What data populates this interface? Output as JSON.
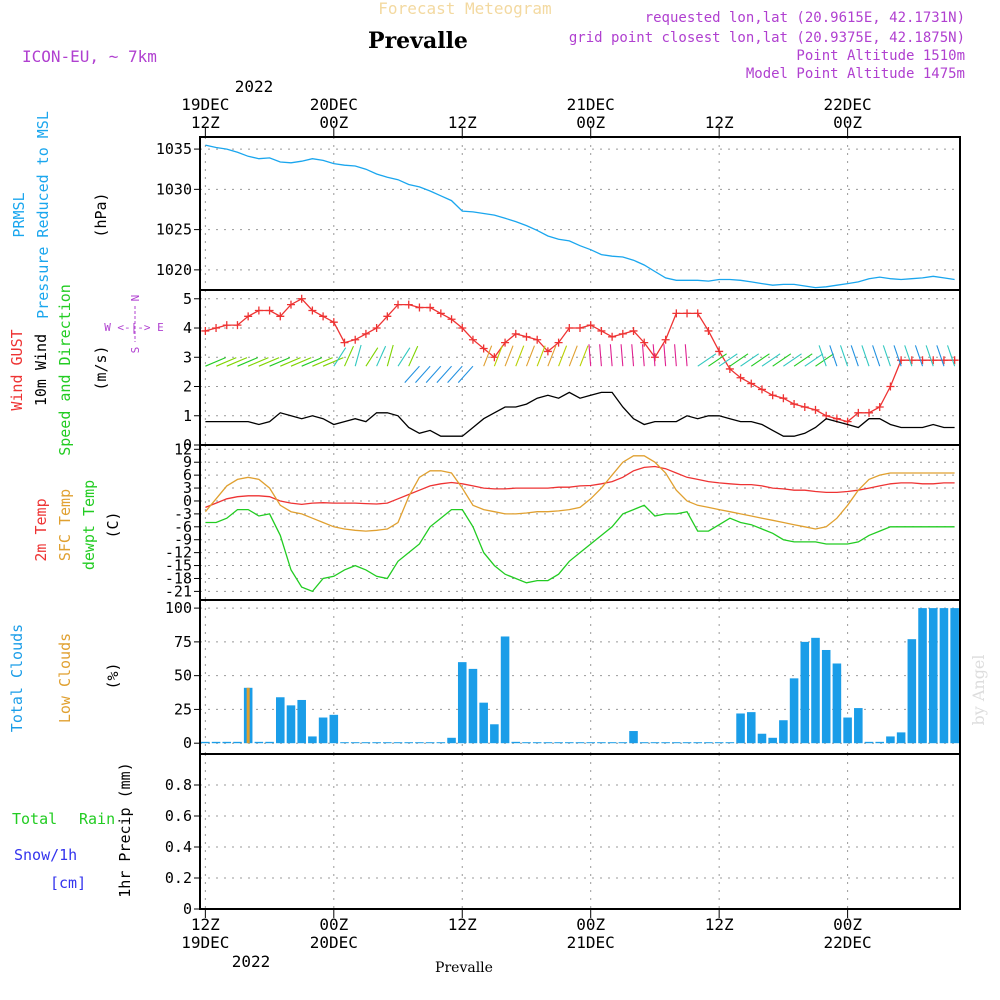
{
  "header": {
    "title_top": "Forecast Meteogram",
    "station": "Prevalle",
    "model": "ICON-EU, ~ 7km",
    "requested": "requested lon,lat (20.9615E, 42.1731N)",
    "grid_point": "grid point closest lon,lat (20.9375E, 42.1875N)",
    "point_altitude": "Point Altitude 1510m",
    "model_altitude": "Model Point Altitude 1475m",
    "footer_station": "Prevalle",
    "watermark": "by Angel"
  },
  "time_axis": {
    "year": "2022",
    "ticks": [
      {
        "t": 12,
        "hour": "12Z",
        "date": "19DEC"
      },
      {
        "t": 24,
        "hour": "00Z",
        "date": "20DEC"
      },
      {
        "t": 36,
        "hour": "12Z",
        "date": ""
      },
      {
        "t": 48,
        "hour": "00Z",
        "date": "21DEC"
      },
      {
        "t": 60,
        "hour": "12Z",
        "date": ""
      },
      {
        "t": 72,
        "hour": "00Z",
        "date": "22DEC"
      }
    ],
    "range": [
      12,
      82
    ]
  },
  "panel_labels": {
    "prmsl": "PRMSL",
    "pressure": "Pressure Reduced to MSL",
    "hpa": "(hPa)",
    "wind_gust": "Wind GUST",
    "wind10": "10m Wind",
    "speed_dir": "Speed and Direction",
    "ms": "(m/s)",
    "compass_n": "N",
    "compass_s": "S",
    "compass_we": "W <-|-> E",
    "temp2m": "2m Temp",
    "sfc_temp": "SFC Temp",
    "dewpt": "dewpt Temp",
    "celsius": "(C)",
    "total_clouds": "Total Clouds",
    "low_clouds": "Low Clouds",
    "pct": "(%)",
    "total": "Total",
    "rain": "Rain",
    "snow": "Snow/1h",
    "cm": "[cm]",
    "precip": "1hr Precip (mm)"
  },
  "colors": {
    "pressure": "#1aa6ee",
    "gust": "#ee3333",
    "wind": "#000000",
    "temp2m": "#ee3333",
    "sfc": "#e0a030",
    "dewpt": "#22cc22",
    "clouds": "#1a9de8",
    "low_clouds": "#e0a030",
    "rain": "#22cc22",
    "snow": "#3333ee",
    "magenta": "#b040d0"
  },
  "chart_data": [
    {
      "type": "line",
      "name": "PRMSL",
      "ylabel": "(hPa)",
      "ylim": [
        1017.5,
        1036.5
      ],
      "yticks": [
        1020,
        1025,
        1030,
        1035
      ],
      "x": [
        12,
        13,
        14,
        15,
        16,
        17,
        18,
        19,
        20,
        21,
        22,
        23,
        24,
        25,
        26,
        27,
        28,
        29,
        30,
        31,
        32,
        33,
        34,
        35,
        36,
        37,
        38,
        39,
        40,
        41,
        42,
        43,
        44,
        45,
        46,
        47,
        48,
        49,
        50,
        51,
        52,
        53,
        54,
        55,
        56,
        57,
        58,
        59,
        60,
        61,
        62,
        63,
        64,
        65,
        66,
        67,
        68,
        69,
        70,
        71,
        72,
        73,
        74,
        75,
        76,
        77,
        78,
        79,
        80,
        81,
        82
      ],
      "series": [
        {
          "name": "PRMSL",
          "values": [
            1035.5,
            1035.2,
            1035.0,
            1034.6,
            1034.1,
            1033.8,
            1033.9,
            1033.4,
            1033.3,
            1033.5,
            1033.8,
            1033.6,
            1033.2,
            1033.0,
            1032.9,
            1032.5,
            1031.9,
            1031.5,
            1031.2,
            1030.6,
            1030.3,
            1029.8,
            1029.2,
            1028.6,
            1027.3,
            1027.2,
            1027.0,
            1026.8,
            1026.4,
            1026.0,
            1025.5,
            1024.9,
            1024.2,
            1023.8,
            1023.6,
            1023.0,
            1022.5,
            1021.9,
            1021.7,
            1021.6,
            1021.2,
            1020.6,
            1019.8,
            1019.0,
            1018.7,
            1018.7,
            1018.7,
            1018.6,
            1018.8,
            1018.8,
            1018.7,
            1018.5,
            1018.3,
            1018.1,
            1018.2,
            1018.2,
            1018.0,
            1017.8,
            1017.9,
            1018.1,
            1018.3,
            1018.5,
            1018.9,
            1019.1,
            1018.9,
            1018.8,
            1018.9,
            1019.0,
            1019.2,
            1019.0,
            1018.8
          ]
        }
      ]
    },
    {
      "type": "line",
      "name": "Wind",
      "ylabel": "(m/s)",
      "ylim": [
        0,
        5.3
      ],
      "yticks": [
        0,
        1,
        2,
        3,
        4,
        5
      ],
      "x": [
        12,
        13,
        14,
        15,
        16,
        17,
        18,
        19,
        20,
        21,
        22,
        23,
        24,
        25,
        26,
        27,
        28,
        29,
        30,
        31,
        32,
        33,
        34,
        35,
        36,
        37,
        38,
        39,
        40,
        41,
        42,
        43,
        44,
        45,
        46,
        47,
        48,
        49,
        50,
        51,
        52,
        53,
        54,
        55,
        56,
        57,
        58,
        59,
        60,
        61,
        62,
        63,
        64,
        65,
        66,
        67,
        68,
        69,
        70,
        71,
        72,
        73,
        74,
        75,
        76,
        77,
        78,
        79,
        80,
        81,
        82
      ],
      "series": [
        {
          "name": "Wind GUST",
          "values": [
            3.9,
            4.0,
            4.1,
            4.1,
            4.4,
            4.6,
            4.6,
            4.4,
            4.8,
            5.0,
            4.6,
            4.4,
            4.2,
            3.5,
            3.6,
            3.8,
            4.0,
            4.4,
            4.8,
            4.8,
            4.7,
            4.7,
            4.5,
            4.3,
            4.0,
            3.6,
            3.3,
            3.0,
            3.5,
            3.8,
            3.7,
            3.6,
            3.2,
            3.5,
            4.0,
            4.0,
            4.1,
            3.9,
            3.7,
            3.8,
            3.9,
            3.5,
            3.0,
            3.6,
            4.5,
            4.5,
            4.5,
            3.9,
            3.2,
            2.6,
            2.3,
            2.1,
            1.9,
            1.7,
            1.6,
            1.4,
            1.3,
            1.2,
            1.0,
            0.9,
            0.8,
            1.1,
            1.1,
            1.3,
            2.0,
            2.9,
            2.9,
            2.9,
            2.9,
            2.9,
            2.9
          ]
        },
        {
          "name": "10m Wind",
          "values": [
            0.8,
            0.8,
            0.8,
            0.8,
            0.8,
            0.7,
            0.8,
            1.1,
            1.0,
            0.9,
            1.0,
            0.9,
            0.7,
            0.8,
            0.9,
            0.8,
            1.1,
            1.1,
            1.0,
            0.6,
            0.4,
            0.5,
            0.3,
            0.3,
            0.3,
            0.6,
            0.9,
            1.1,
            1.3,
            1.3,
            1.4,
            1.6,
            1.7,
            1.6,
            1.8,
            1.6,
            1.7,
            1.8,
            1.8,
            1.3,
            0.9,
            0.7,
            0.8,
            0.8,
            0.8,
            1.0,
            0.9,
            1.0,
            1.0,
            0.9,
            0.8,
            0.8,
            0.7,
            0.5,
            0.3,
            0.3,
            0.4,
            0.6,
            0.9,
            0.8,
            0.7,
            0.6,
            0.9,
            0.9,
            0.7,
            0.6,
            0.6,
            0.6,
            0.7,
            0.6,
            0.6
          ]
        }
      ]
    },
    {
      "type": "line",
      "name": "Temperature",
      "ylabel": "(C)",
      "ylim": [
        -23,
        13
      ],
      "yticks": [
        12,
        9,
        6,
        3,
        0,
        -3,
        -6,
        -9,
        -12,
        -15,
        -18,
        -21
      ],
      "x": [
        12,
        13,
        14,
        15,
        16,
        17,
        18,
        19,
        20,
        21,
        22,
        23,
        24,
        25,
        26,
        27,
        28,
        29,
        30,
        31,
        32,
        33,
        34,
        35,
        36,
        37,
        38,
        39,
        40,
        41,
        42,
        43,
        44,
        45,
        46,
        47,
        48,
        49,
        50,
        51,
        52,
        53,
        54,
        55,
        56,
        57,
        58,
        59,
        60,
        61,
        62,
        63,
        64,
        65,
        66,
        67,
        68,
        69,
        70,
        71,
        72,
        73,
        74,
        75,
        76,
        77,
        78,
        79,
        80,
        81,
        82
      ],
      "series": [
        {
          "name": "2m Temp",
          "values": [
            -1.5,
            -0.5,
            0.5,
            1.0,
            1.2,
            1.2,
            1.0,
            0.0,
            -0.5,
            -0.8,
            -0.5,
            -0.4,
            -0.5,
            -0.5,
            -0.5,
            -0.6,
            -0.7,
            -0.5,
            0.5,
            1.5,
            2.5,
            3.5,
            4.0,
            4.3,
            4.0,
            3.5,
            3.0,
            2.8,
            2.8,
            3.0,
            3.0,
            3.0,
            3.0,
            3.2,
            3.2,
            3.5,
            3.6,
            4.0,
            4.5,
            5.5,
            7.0,
            7.8,
            8.0,
            7.5,
            6.5,
            5.5,
            5.0,
            4.5,
            4.2,
            4.0,
            3.8,
            3.8,
            3.5,
            3.0,
            2.8,
            2.5,
            2.5,
            2.2,
            2.0,
            2.0,
            2.2,
            2.5,
            3.0,
            3.5,
            4.0,
            4.2,
            4.2,
            4.0,
            4.0,
            4.2,
            4.2
          ]
        },
        {
          "name": "SFC Temp",
          "values": [
            -2.5,
            0.5,
            3.5,
            5.0,
            5.5,
            5.0,
            3.0,
            -1.0,
            -2.5,
            -3.0,
            -4.0,
            -5.0,
            -6.0,
            -6.5,
            -6.8,
            -7.0,
            -6.8,
            -6.5,
            -5.0,
            1.0,
            5.5,
            7.0,
            7.0,
            6.5,
            3.0,
            -1.0,
            -2.0,
            -2.5,
            -3.0,
            -3.0,
            -2.8,
            -2.5,
            -2.5,
            -2.3,
            -2.0,
            -1.5,
            0.5,
            3.0,
            6.0,
            9.0,
            10.5,
            10.5,
            9.0,
            6.5,
            2.5,
            0.0,
            -1.0,
            -1.5,
            -2.0,
            -2.5,
            -3.0,
            -3.5,
            -4.0,
            -4.5,
            -5.0,
            -5.5,
            -6.0,
            -6.5,
            -6.0,
            -4.0,
            -1.0,
            2.5,
            5.0,
            6.0,
            6.5,
            6.5,
            6.5,
            6.5,
            6.5,
            6.5,
            6.5
          ]
        },
        {
          "name": "dewpt Temp",
          "values": [
            -5.0,
            -5.0,
            -4.0,
            -2.0,
            -2.0,
            -3.5,
            -3.0,
            -8.0,
            -16.0,
            -20.0,
            -21.0,
            -18.0,
            -17.5,
            -16.0,
            -15.0,
            -16.0,
            -17.5,
            -18.0,
            -14.0,
            -12.0,
            -10.0,
            -6.0,
            -4.0,
            -2.0,
            -2.0,
            -6.0,
            -12.0,
            -15.0,
            -17.0,
            -18.0,
            -19.0,
            -18.5,
            -18.5,
            -17.0,
            -14.0,
            -12.0,
            -10.0,
            -8.0,
            -6.0,
            -3.0,
            -2.0,
            -1.0,
            -3.5,
            -3.0,
            -3.0,
            -2.5,
            -7.0,
            -7.0,
            -5.5,
            -4.0,
            -5.0,
            -5.5,
            -6.5,
            -7.5,
            -9.0,
            -9.5,
            -9.5,
            -9.5,
            -10.0,
            -10.0,
            -10.0,
            -9.5,
            -8.0,
            -7.0,
            -6.0,
            -6.0,
            -6.0,
            -6.0,
            -6.0,
            -6.0,
            -6.0
          ]
        }
      ]
    },
    {
      "type": "bar",
      "name": "Clouds",
      "ylabel": "(%)",
      "ylim": [
        -8,
        106
      ],
      "yticks": [
        0,
        25,
        50,
        75,
        100
      ],
      "x": [
        12,
        13,
        14,
        15,
        16,
        17,
        18,
        19,
        20,
        21,
        22,
        23,
        24,
        25,
        26,
        27,
        28,
        29,
        30,
        31,
        32,
        33,
        34,
        35,
        36,
        37,
        38,
        39,
        40,
        41,
        42,
        43,
        44,
        45,
        46,
        47,
        48,
        49,
        50,
        51,
        52,
        53,
        54,
        55,
        56,
        57,
        58,
        59,
        60,
        61,
        62,
        63,
        64,
        65,
        66,
        67,
        68,
        69,
        70,
        71,
        72,
        73,
        74,
        75,
        76,
        77,
        78,
        79,
        80,
        81,
        82
      ],
      "series": [
        {
          "name": "Total Clouds",
          "values": [
            1,
            1,
            1,
            1,
            41,
            1,
            1,
            34,
            28,
            32,
            5,
            19,
            21,
            0,
            0,
            0,
            0,
            0,
            0,
            0,
            0,
            0,
            0,
            4,
            60,
            55,
            30,
            14,
            79,
            1,
            0,
            0,
            0,
            0,
            0,
            0,
            0,
            0,
            0,
            0,
            9,
            0,
            0,
            0,
            0,
            0,
            0,
            0,
            0,
            0,
            22,
            23,
            7,
            4,
            17,
            48,
            75,
            78,
            69,
            59,
            19,
            26,
            1,
            1,
            5,
            8,
            77,
            100,
            100,
            100,
            100
          ]
        },
        {
          "name": "Low Clouds",
          "values": [
            0,
            0,
            0,
            0,
            41,
            0,
            0,
            0,
            0,
            0,
            0,
            0,
            0,
            0,
            0,
            0,
            0,
            0,
            0,
            0,
            0,
            0,
            0,
            0,
            0,
            0,
            0,
            0,
            0,
            0,
            0,
            0,
            0,
            0,
            0,
            0,
            0,
            0,
            0,
            0,
            0,
            0,
            0,
            0,
            0,
            0,
            0,
            0,
            0,
            0,
            0,
            0,
            0,
            0,
            0,
            0,
            0,
            0,
            0,
            0,
            0,
            0,
            0,
            0,
            0,
            0,
            0,
            0,
            0,
            0,
            0
          ]
        }
      ]
    },
    {
      "type": "bar",
      "name": "Precipitation",
      "ylabel": "1hr Precip (mm)",
      "ylim": [
        0,
        1
      ],
      "yticks": [
        0,
        0.2,
        0.4,
        0.6,
        0.8
      ],
      "x": [
        12,
        82
      ],
      "series": [
        {
          "name": "Total Rain",
          "values": [
            0,
            0
          ]
        }
      ]
    }
  ]
}
